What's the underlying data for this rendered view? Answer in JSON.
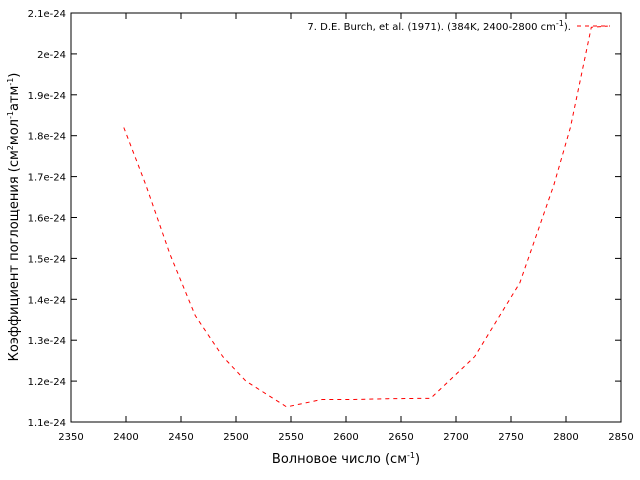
{
  "chart_data": {
    "type": "line",
    "title": "",
    "xlabel": {
      "main": "Волновое число (см",
      "sup": "-1",
      "tail": ")"
    },
    "ylabel": {
      "p1": "Коэффициент поглощения (см",
      "s1": "2",
      "p2": "мол",
      "s2": "-1",
      "p3": "атм",
      "s3": "-1",
      "p4": ")"
    },
    "xlim": [
      2350,
      2850
    ],
    "ylim": [
      1.1e-24,
      2.1e-24
    ],
    "xticks": [
      2350,
      2400,
      2450,
      2500,
      2550,
      2600,
      2650,
      2700,
      2750,
      2800,
      2850
    ],
    "yticks": [
      1.1e-24,
      1.2e-24,
      1.3e-24,
      1.4e-24,
      1.5e-24,
      1.6e-24,
      1.7e-24,
      1.8e-24,
      1.9e-24,
      2e-24,
      2.1e-24
    ],
    "yticklabels": [
      "1.1e-24",
      "1.2e-24",
      "1.3e-24",
      "1.4e-24",
      "1.5e-24",
      "1.6e-24",
      "1.7e-24",
      "1.8e-24",
      "1.9e-24",
      "2e-24",
      "2.1e-24"
    ],
    "grid": false,
    "legend_position": "top-right",
    "series": [
      {
        "name": {
          "main": "7. D.E. Burch, et al. (1971). (384K, 2400-2800 cm",
          "sup": "-1",
          "tail": ")."
        },
        "color": "#ff0000",
        "dash": "dashed",
        "x": [
          2398,
          2418,
          2440,
          2463,
          2488,
          2509,
          2546,
          2578,
          2607,
          2638,
          2677,
          2717,
          2758,
          2789,
          2804,
          2823,
          2838
        ],
        "y": [
          1.82e-24,
          1.68e-24,
          1.51e-24,
          1.36e-24,
          1.26e-24,
          1.2e-24,
          1.137e-24,
          1.155e-24,
          1.155e-24,
          1.157e-24,
          1.158e-24,
          1.26e-24,
          1.44e-24,
          1.68e-24,
          1.82e-24,
          2.065e-24,
          2.068e-24
        ]
      }
    ]
  }
}
